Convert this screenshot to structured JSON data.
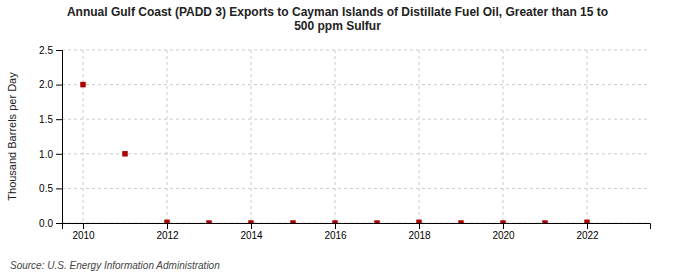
{
  "chart_data": {
    "type": "scatter",
    "title": "Annual Gulf Coast (PADD 3) Exports to Cayman Islands of Distillate Fuel Oil, Greater than 15 to\n500 ppm Sulfur",
    "ylabel": "Thousand Barrels per Day",
    "source": "Source: U.S. Energy Information Administration",
    "x": [
      2010,
      2011,
      2012,
      2013,
      2014,
      2015,
      2016,
      2017,
      2018,
      2019,
      2020,
      2021,
      2022
    ],
    "values": [
      2.0,
      1.0,
      0.01,
      0,
      0,
      0,
      0,
      0,
      0.01,
      0,
      0,
      0,
      0.01
    ],
    "color": "#aa0000",
    "marker": "square",
    "xlim": [
      2009.5,
      2023.5
    ],
    "xticks": [
      2010,
      2012,
      2014,
      2016,
      2018,
      2020,
      2022
    ],
    "ylim": [
      0,
      2.5
    ],
    "yticks": [
      {
        "value": 0.0,
        "label": "0.0"
      },
      0.5,
      {
        "value": 1.0,
        "label": "1.0"
      },
      1.5,
      {
        "value": 2.0,
        "label": "2.0"
      },
      2.5
    ],
    "grid": true
  }
}
